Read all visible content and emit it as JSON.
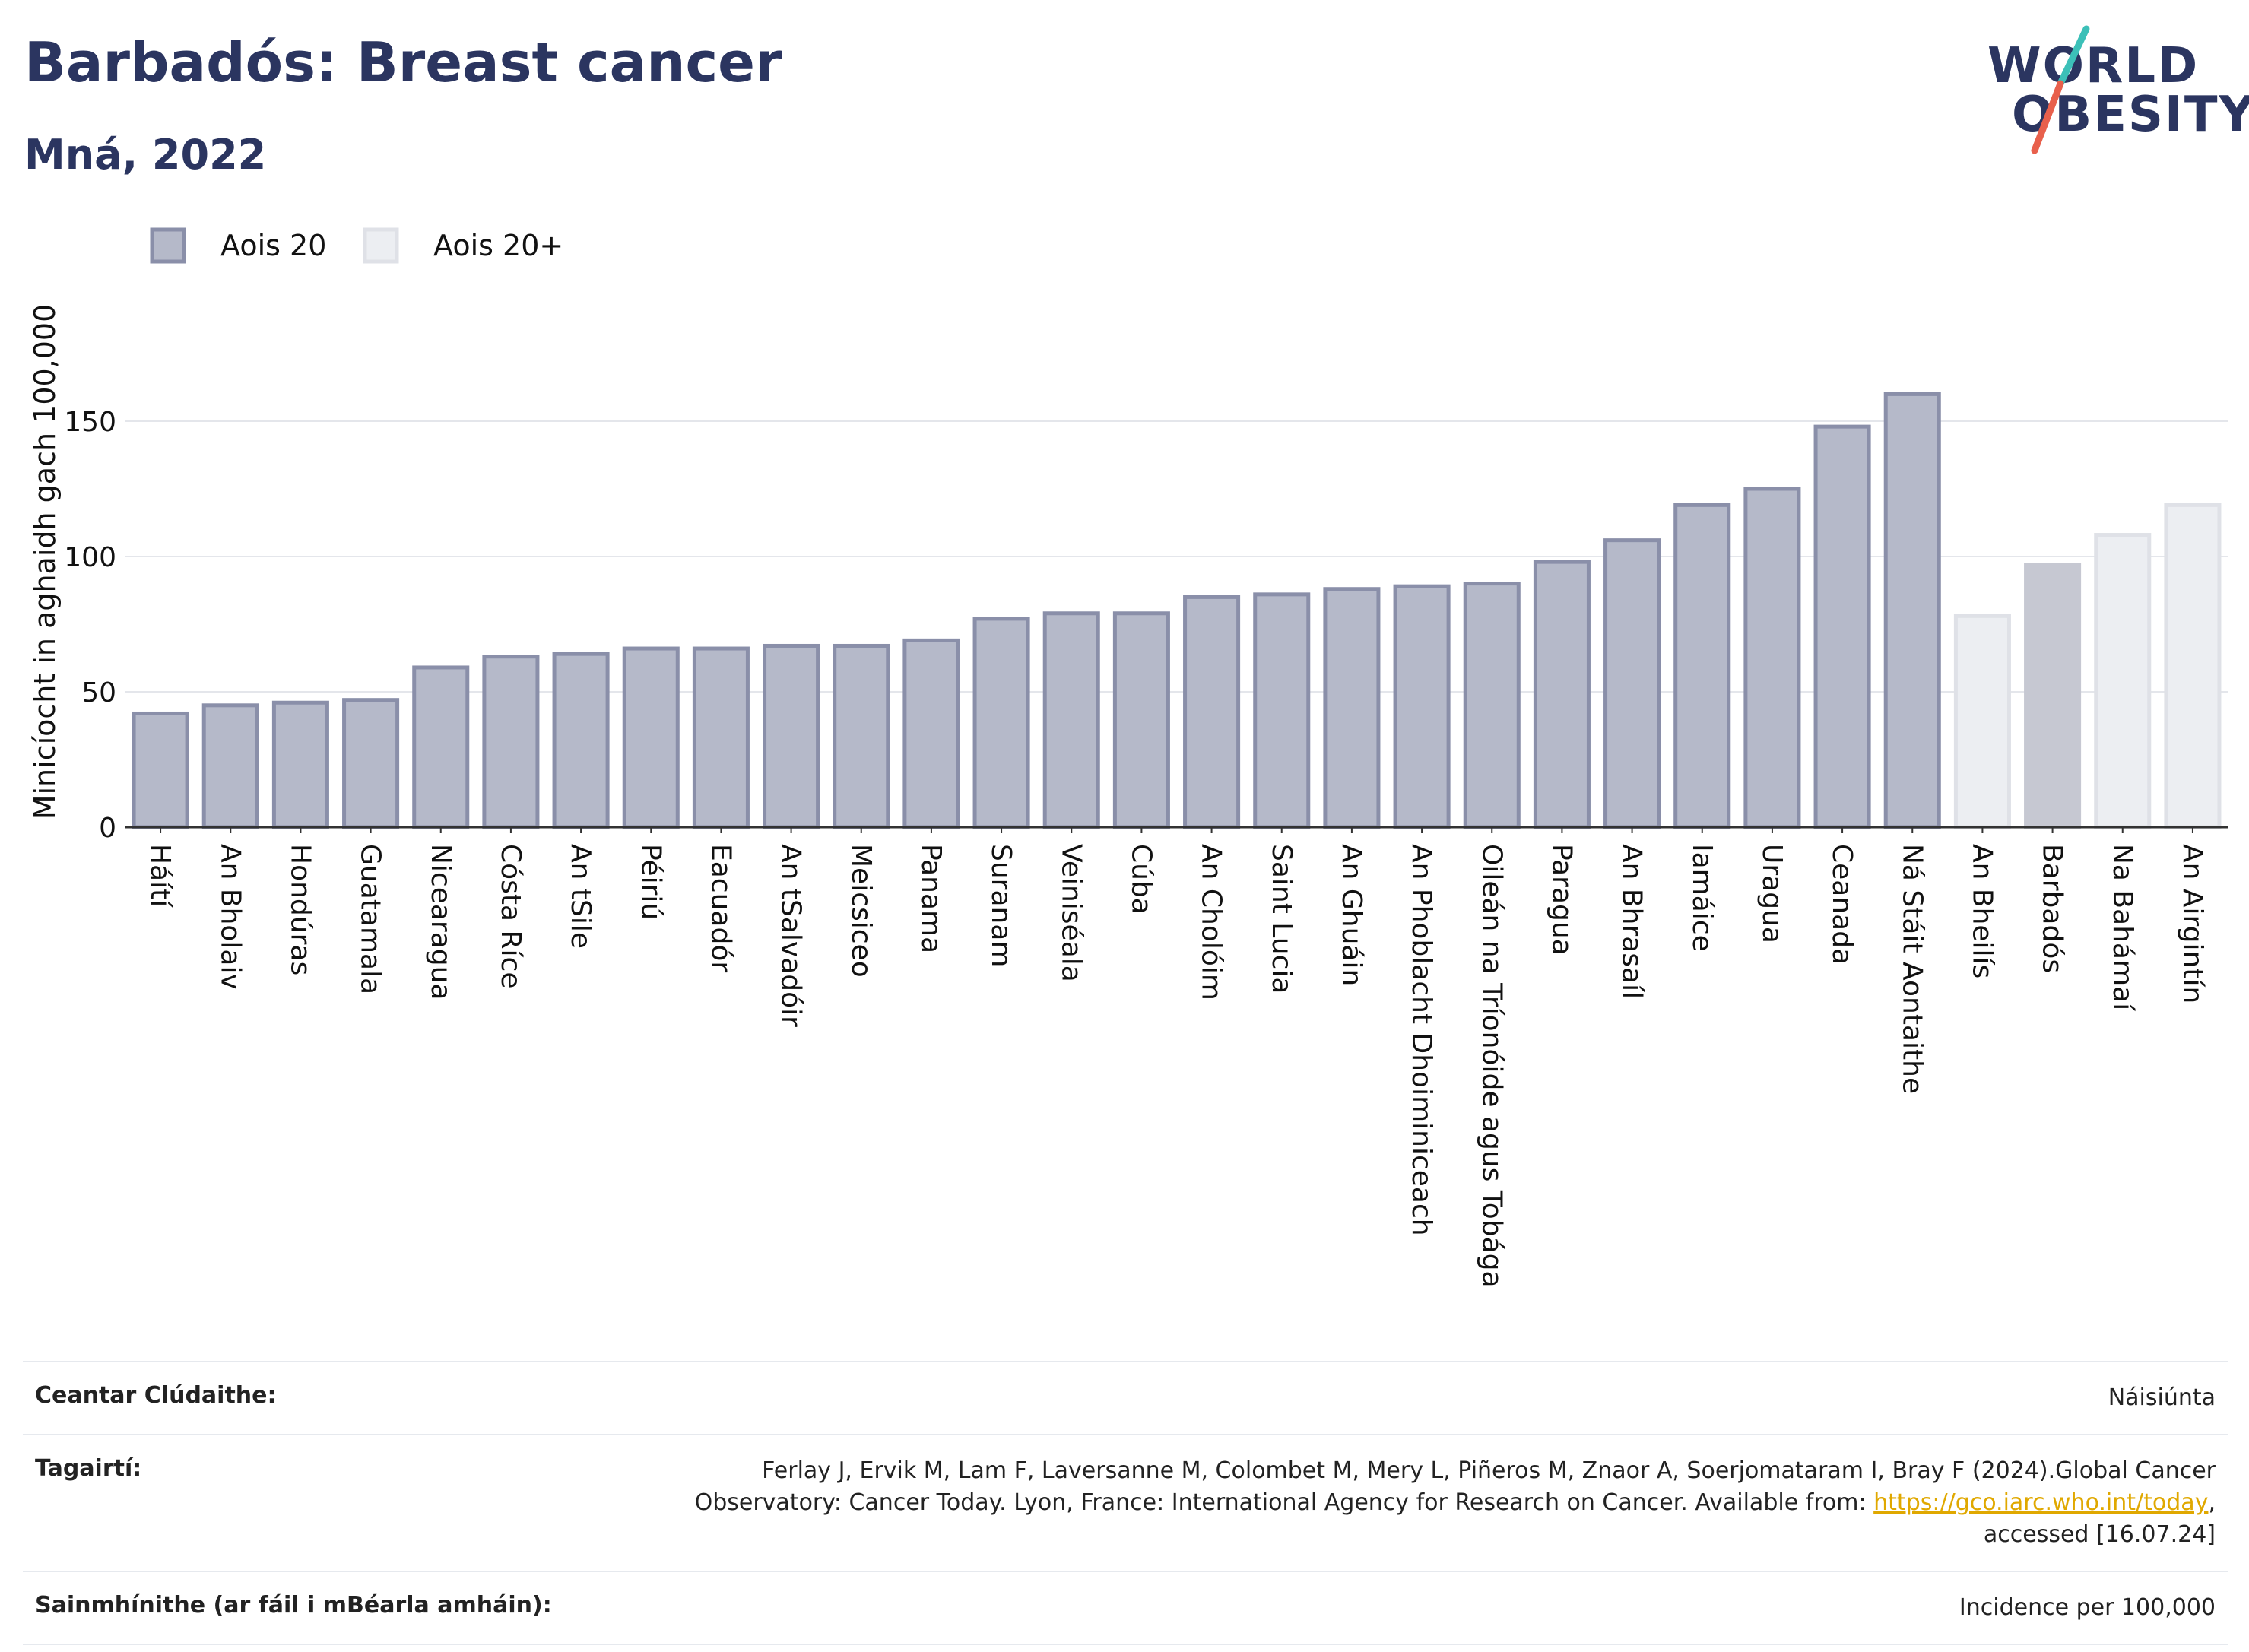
{
  "header": {
    "title": "Barbadós: Breast cancer",
    "subtitle": "Mná, 2022"
  },
  "logo": {
    "line1": "WORLD",
    "line2": "OBESITY",
    "slash_colors": [
      "#3cc0b8",
      "#e8604c"
    ]
  },
  "colors": {
    "bar_primary": "#b5b9c9",
    "bar_primary_stroke": "#8a8fa9",
    "bar_secondary": "#eceef2",
    "bar_secondary_stroke": "#dfe1e7",
    "highlight": "#c6c8d2",
    "text_dark": "#2b3560"
  },
  "chart_data": {
    "type": "bar",
    "ylabel": "Minicíocht in aghaidh gach 100,000",
    "ylim": [
      0,
      175
    ],
    "yticks": [
      0,
      50,
      100,
      150
    ],
    "grid": true,
    "legend_position": "top-left",
    "legend": [
      {
        "label": "Aois 20",
        "style": "primary"
      },
      {
        "label": "Aois 20+",
        "style": "secondary"
      }
    ],
    "categories": [
      "Háítí",
      "An Bholaiv",
      "Hondúras",
      "Guatamala",
      "Nicearagua",
      "Cósta Ríce",
      "An tSile",
      "Péiriú",
      "Eacuadór",
      "An tSalvadóir",
      "Meicsiceo",
      "Panama",
      "Suranam",
      "Veiniséala",
      "Cúba",
      "An Cholóim",
      "Saint Lucia",
      "An Ghuáin",
      "An Phoblacht Dhoiminiceach",
      "Oileán na Tríonóide agus Tobága",
      "Paragua",
      "An Bhrasaíl",
      "Iamáice",
      "Uragua",
      "Ceanada",
      "Ná Stáit Aontaithe",
      "An Bheilís",
      "Barbadós",
      "Na Bahámaí",
      "An Airgintín"
    ],
    "values": [
      42,
      45,
      46,
      47,
      59,
      63,
      64,
      66,
      66,
      67,
      67,
      69,
      77,
      79,
      79,
      85,
      86,
      88,
      89,
      90,
      98,
      106,
      119,
      125,
      148,
      160,
      78,
      97,
      108,
      119
    ],
    "styles": [
      "primary",
      "primary",
      "primary",
      "primary",
      "primary",
      "primary",
      "primary",
      "primary",
      "primary",
      "primary",
      "primary",
      "primary",
      "primary",
      "primary",
      "primary",
      "primary",
      "primary",
      "primary",
      "primary",
      "primary",
      "primary",
      "primary",
      "primary",
      "primary",
      "primary",
      "primary",
      "secondary",
      "highlight",
      "secondary",
      "secondary"
    ]
  },
  "footer": {
    "coverage_label": "Ceantar Clúdaithe:",
    "coverage_value": "Náisiúnta",
    "references_label": "Tagairtí:",
    "references_line1": "Ferlay J, Ervik M, Lam F, Laversanne M, Colombet M, Mery L, Piñeros M, Znaor A, Soerjomataram I, Bray F (2024).Global Cancer",
    "references_line2": "Observatory: Cancer Today. Lyon, France: International Agency for Research on Cancer. Available from: ",
    "references_link": "https://gco.iarc.who.int/today",
    "references_line2_end": ",",
    "references_line3": "accessed [16.07.24]",
    "definitions_label": "Sainmhínithe (ar fáil i mBéarla amháin):",
    "definitions_value": "Incidence per 100,000"
  }
}
